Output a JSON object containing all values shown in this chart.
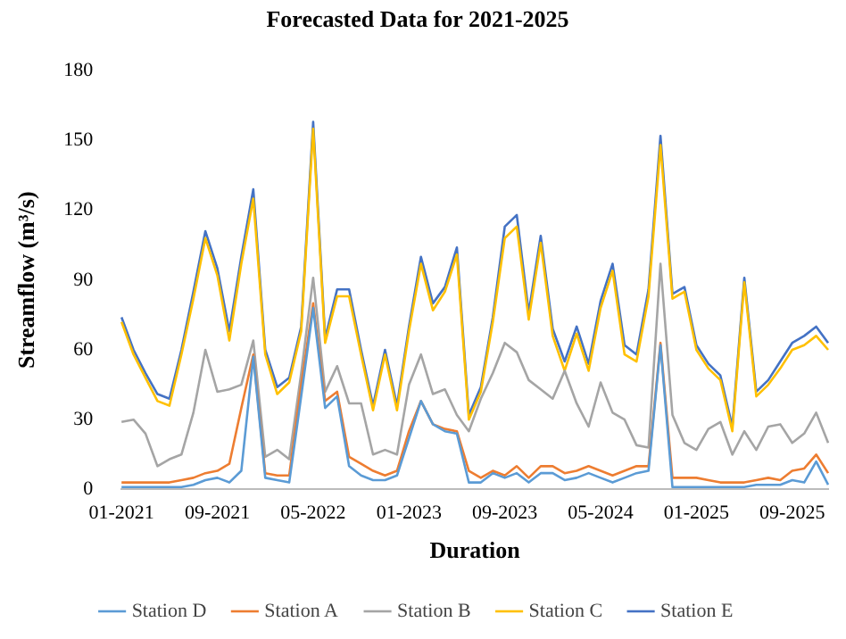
{
  "chart_data": {
    "type": "line",
    "title": "Forecasted Data for 2021-2025",
    "xlabel": "Duration",
    "ylabel": "Streamflow (m³/s)",
    "categories": [
      "01-2021",
      null,
      null,
      null,
      null,
      null,
      null,
      null,
      "09-2021",
      null,
      null,
      null,
      null,
      null,
      null,
      null,
      "05-2022",
      null,
      null,
      null,
      null,
      null,
      null,
      null,
      "01-2023",
      null,
      null,
      null,
      null,
      null,
      null,
      null,
      "09-2023",
      null,
      null,
      null,
      null,
      null,
      null,
      null,
      "05-2024",
      null,
      null,
      null,
      null,
      null,
      null,
      null,
      "01-2025",
      null,
      null,
      null,
      null,
      null,
      null,
      null,
      "09-2025",
      null,
      null,
      null
    ],
    "series": [
      {
        "name": "Station D",
        "color": "#5b9bd5",
        "values": [
          1,
          1,
          1,
          1,
          1,
          1,
          2,
          4,
          5,
          3,
          8,
          57,
          5,
          4,
          3,
          40,
          78,
          35,
          40,
          10,
          6,
          4,
          4,
          6,
          22,
          38,
          28,
          25,
          24,
          3,
          3,
          7,
          5,
          7,
          3,
          7,
          7,
          4,
          5,
          7,
          5,
          3,
          5,
          7,
          8,
          62,
          1,
          1,
          1,
          1,
          1,
          1,
          1,
          2,
          2,
          2,
          4,
          3,
          12,
          2
        ]
      },
      {
        "name": "Station A",
        "color": "#ed7d31",
        "values": [
          3,
          3,
          3,
          3,
          3,
          4,
          5,
          7,
          8,
          11,
          35,
          58,
          7,
          6,
          6,
          45,
          80,
          38,
          42,
          14,
          11,
          8,
          6,
          8,
          25,
          38,
          28,
          26,
          25,
          8,
          5,
          8,
          6,
          10,
          5,
          10,
          10,
          7,
          8,
          10,
          8,
          6,
          8,
          10,
          10,
          63,
          5,
          5,
          5,
          4,
          3,
          3,
          3,
          4,
          5,
          4,
          8,
          9,
          15,
          7
        ]
      },
      {
        "name": "Station B",
        "color": "#a5a5a5",
        "values": [
          29,
          30,
          24,
          10,
          13,
          15,
          33,
          60,
          42,
          43,
          45,
          64,
          14,
          17,
          13,
          50,
          91,
          42,
          53,
          37,
          37,
          15,
          17,
          15,
          45,
          58,
          41,
          43,
          32,
          25,
          39,
          50,
          63,
          59,
          47,
          43,
          39,
          51,
          37,
          27,
          46,
          33,
          30,
          19,
          18,
          97,
          32,
          20,
          17,
          26,
          29,
          15,
          25,
          17,
          27,
          28,
          20,
          24,
          33,
          20
        ]
      },
      {
        "name": "Station C",
        "color": "#ffc000",
        "values": [
          72,
          58,
          48,
          38,
          36,
          58,
          82,
          108,
          92,
          64,
          97,
          125,
          58,
          41,
          46,
          68,
          155,
          63,
          83,
          83,
          58,
          34,
          58,
          34,
          68,
          97,
          77,
          85,
          101,
          30,
          42,
          72,
          108,
          113,
          73,
          106,
          66,
          51,
          67,
          51,
          78,
          94,
          58,
          55,
          83,
          148,
          82,
          85,
          60,
          52,
          47,
          25,
          89,
          40,
          45,
          52,
          60,
          62,
          66,
          60
        ]
      },
      {
        "name": "Station E",
        "color": "#4472c4",
        "values": [
          74,
          60,
          50,
          41,
          39,
          60,
          85,
          111,
          95,
          68,
          100,
          129,
          60,
          44,
          48,
          70,
          158,
          65,
          86,
          86,
          60,
          36,
          60,
          36,
          70,
          100,
          80,
          87,
          104,
          32,
          44,
          74,
          113,
          118,
          76,
          109,
          69,
          55,
          70,
          54,
          81,
          97,
          62,
          58,
          86,
          152,
          84,
          87,
          62,
          54,
          49,
          27,
          91,
          42,
          47,
          55,
          63,
          66,
          70,
          63
        ]
      }
    ],
    "ylim": [
      0,
      180
    ],
    "yticks": [
      0,
      30,
      60,
      90,
      120,
      150,
      180
    ],
    "grid": false,
    "legend": "bottom",
    "marker": "none",
    "line_style": "solid"
  }
}
